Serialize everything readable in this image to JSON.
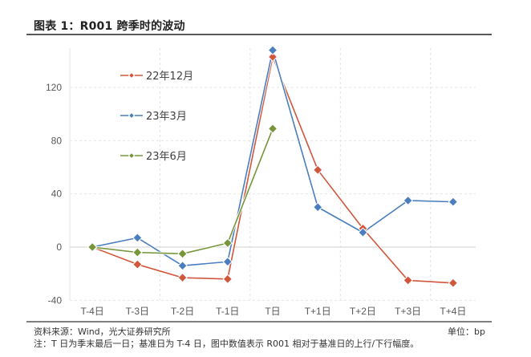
{
  "header": {
    "title": "图表 1：R001 跨季时的波动"
  },
  "footer": {
    "source": "资料来源：Wind，光大证券研究所",
    "unit": "单位：bp",
    "note": "注：T 日为季末最后一日；基准日为 T-4 日，图中数值表示 R001 相对于基准日的上行/下行幅度。"
  },
  "chart_data": {
    "type": "line",
    "title": "R001 跨季时的波动",
    "xlabel": "",
    "ylabel": "bp",
    "categories": [
      "T-4日",
      "T-3日",
      "T-2日",
      "T-1日",
      "T日",
      "T+1日",
      "T+2日",
      "T+3日",
      "T+4日"
    ],
    "y_ticks": [
      -40,
      0,
      40,
      80,
      120
    ],
    "ylim": [
      -40,
      150
    ],
    "grid": true,
    "legend_position": "upper-left inside",
    "series": [
      {
        "name": "22年12月",
        "color": "#D0573C",
        "values": [
          0,
          -13,
          -23,
          -24,
          143,
          58,
          14,
          -25,
          -27
        ]
      },
      {
        "name": "23年3月",
        "color": "#4A7EBF",
        "values": [
          0,
          7,
          -14,
          -11,
          148,
          30,
          11,
          35,
          34
        ]
      },
      {
        "name": "23年6月",
        "color": "#77963B",
        "values": [
          0,
          -4,
          -5,
          3,
          89
        ]
      }
    ]
  }
}
